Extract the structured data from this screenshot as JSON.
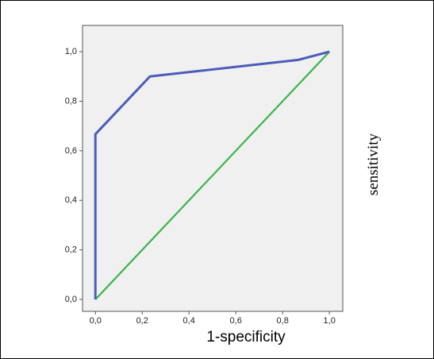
{
  "chart_data": {
    "type": "line",
    "x_label": "1-specificity",
    "y_label": "sensitivity",
    "xlim": [
      -0.055,
      1.057
    ],
    "ylim": [
      -0.048,
      1.106
    ],
    "xticks": [
      {
        "value": 0,
        "label": "0,0"
      },
      {
        "value": 0.2,
        "label": "0,2"
      },
      {
        "value": 0.4,
        "label": "0,4"
      },
      {
        "value": 0.6,
        "label": "0,6"
      },
      {
        "value": 0.8,
        "label": "0,8"
      },
      {
        "value": 1,
        "label": "1,0"
      }
    ],
    "yticks": [
      {
        "value": 0,
        "label": "0,0"
      },
      {
        "value": 0.2,
        "label": "0,2"
      },
      {
        "value": 0.4,
        "label": "0,4"
      },
      {
        "value": 0.6,
        "label": "0,6"
      },
      {
        "value": 0.8,
        "label": "0,8"
      },
      {
        "value": 1,
        "label": "1,0"
      }
    ],
    "series": [
      {
        "color": "#4b5cb8",
        "x": [
          0,
          0,
          0.233,
          0.867,
          1
        ],
        "values": [
          0,
          0.667,
          0.9,
          0.967,
          1
        ]
      },
      {
        "color": "#3cb44a",
        "x": [
          0,
          1
        ],
        "values": [
          0,
          1
        ]
      }
    ]
  }
}
